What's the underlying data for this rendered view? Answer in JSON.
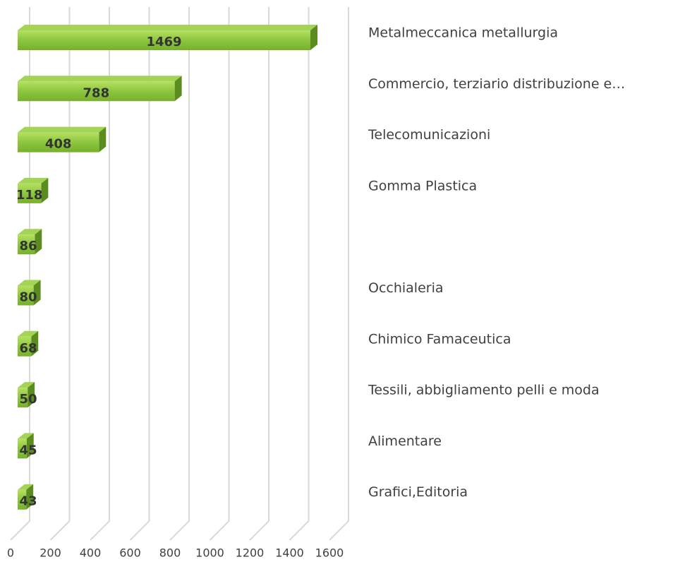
{
  "chart_data": {
    "type": "bar",
    "orientation": "horizontal",
    "style": "3d",
    "categories": [
      "Metalmeccanica metallurgia",
      "Commercio, terziario distribuzione e…",
      "Telecomunicazioni",
      "Gomma Plastica",
      null,
      "Occhialeria",
      "Chimico Famaceutica",
      "Tessili, abbigliamento pelli e moda",
      "Alimentare",
      "Grafici,Editoria"
    ],
    "values": [
      1469,
      788,
      408,
      118,
      86,
      80,
      68,
      50,
      45,
      43
    ],
    "color": "#8cc63e",
    "xlim": [
      0,
      1600
    ],
    "xticks": [
      0,
      200,
      400,
      600,
      800,
      1000,
      1200,
      1400,
      1600
    ],
    "grid": true
  }
}
